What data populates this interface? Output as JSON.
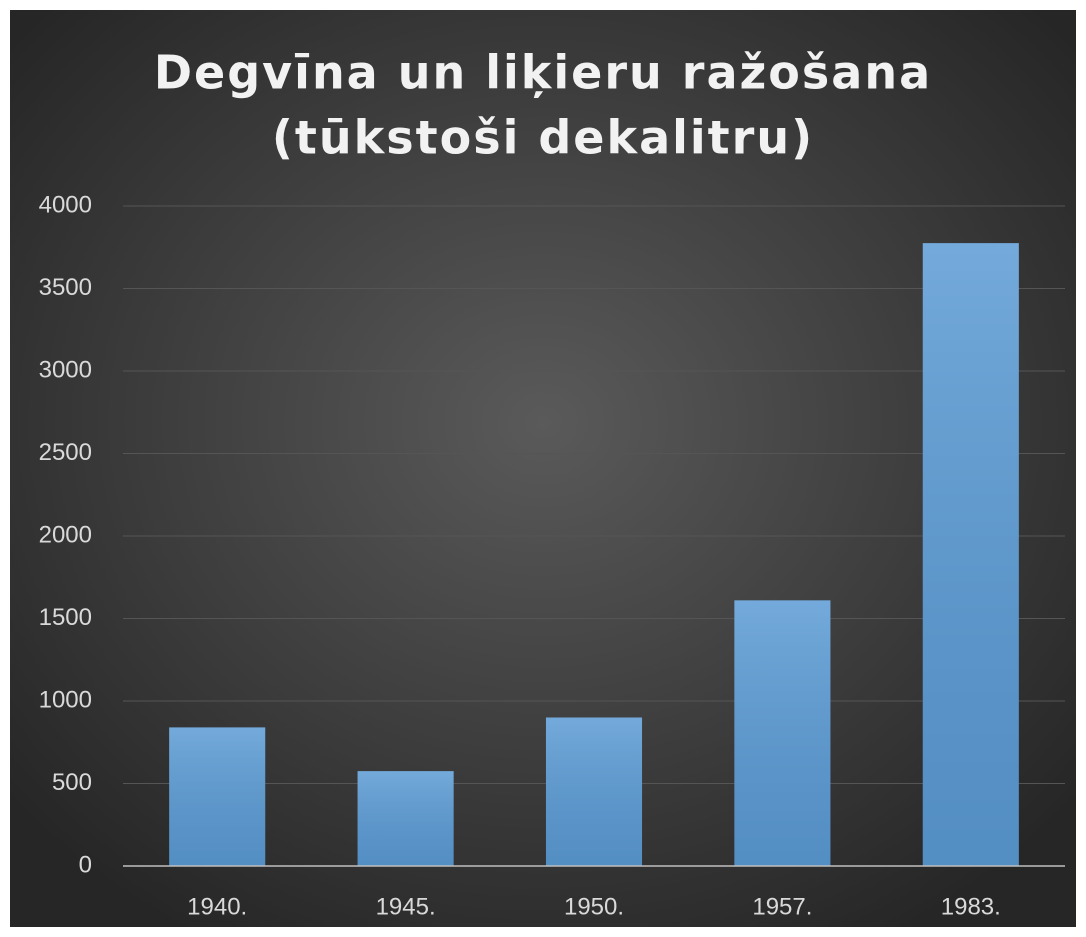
{
  "chart_data": {
    "type": "bar",
    "title": [
      "Degvīna un liķieru ražošana",
      "(tūkstoši dekalitru)"
    ],
    "categories": [
      "1940.",
      "1945.",
      "1950.",
      "1957.",
      "1983."
    ],
    "values": [
      840,
      575,
      900,
      1610,
      3775
    ],
    "color": "#5b9bd5",
    "ylim": [
      0,
      4000
    ],
    "yticks": [
      0,
      500,
      1000,
      1500,
      2000,
      2500,
      3000,
      3500,
      4000
    ],
    "grid": true
  }
}
